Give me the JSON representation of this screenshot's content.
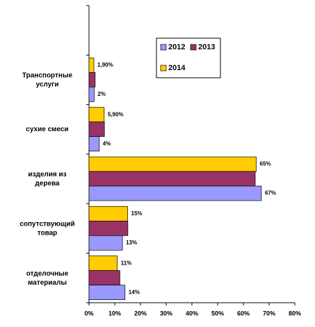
{
  "chart_data": {
    "type": "bar",
    "orientation": "horizontal",
    "categories": [
      null,
      "Транспортные\nуслуги",
      "сухие смеси",
      "изделия из\nдерева",
      "сопутствующий\nтовар",
      "отделочные\nматериалы"
    ],
    "series": [
      {
        "name": "2014",
        "color": "#ffcc00",
        "values": [
          null,
          1.9,
          5.9,
          65,
          15,
          11
        ],
        "value_labels": [
          null,
          "1,90%",
          "5,90%",
          "65%",
          "15%",
          "11%"
        ]
      },
      {
        "name": "2013",
        "color": "#993366",
        "values": [
          null,
          2.4,
          6,
          64.6,
          15.1,
          12
        ]
      },
      {
        "name": "2012",
        "color": "#9999ff",
        "values": [
          null,
          2,
          4,
          67,
          13,
          14
        ],
        "value_labels": [
          null,
          "2%",
          "4%",
          "67%",
          "13%",
          "14%"
        ]
      }
    ],
    "xlim": [
      0,
      80
    ],
    "xticks": [
      {
        "value": 0,
        "label": "0%"
      },
      {
        "value": 10,
        "label": "10%"
      },
      {
        "value": 20,
        "label": "20%"
      },
      {
        "value": 30,
        "label": "30%"
      },
      {
        "value": 40,
        "label": "40%"
      },
      {
        "value": 50,
        "label": "50%"
      },
      {
        "value": 60,
        "label": "60%"
      },
      {
        "value": 70,
        "label": "70%"
      },
      {
        "value": 80,
        "label": "80%"
      }
    ],
    "legend": "upper right"
  }
}
